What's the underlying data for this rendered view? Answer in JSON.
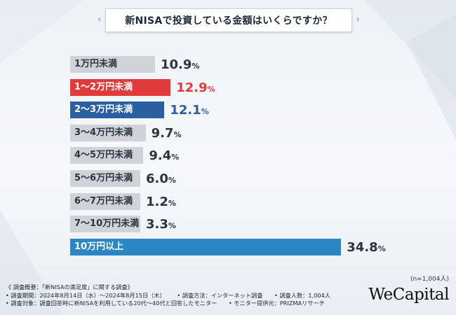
{
  "title": "新NISAで投資している金額はいくらですか？",
  "chart_data": {
    "type": "bar",
    "orientation": "horizontal",
    "categories": [
      "1万円未満",
      "1〜2万円未満",
      "2〜3万円未満",
      "3〜4万円未満",
      "4〜5万円未満",
      "5〜6万円未満",
      "6〜7万円未満",
      "7〜10万円未満",
      "10万円以上"
    ],
    "values": [
      10.9,
      12.9,
      12.1,
      9.7,
      9.4,
      6.0,
      1.2,
      3.3,
      34.8
    ],
    "value_labels": [
      "10.9",
      "12.9",
      "12.1",
      "9.7",
      "9.4",
      "6.0",
      "1.2",
      "3.3",
      "34.8"
    ],
    "unit": "%",
    "colors": [
      "#cfd3d8",
      "#e03a3a",
      "#2a5fa0",
      "#cfd3d8",
      "#cfd3d8",
      "#cfd3d8",
      "#cfd3d8",
      "#cfd3d8",
      "#2b86c4"
    ],
    "label_colors": [
      "#2c3540",
      "#ffffff",
      "#ffffff",
      "#2c3540",
      "#2c3540",
      "#2c3540",
      "#2c3540",
      "#2c3540",
      "#ffffff"
    ],
    "value_colors": [
      "#2c3540",
      "#e03a3a",
      "#2a5fa0",
      "#2c3540",
      "#2c3540",
      "#2c3540",
      "#2c3540",
      "#2c3540",
      "#2c3540"
    ],
    "sample_size": "(n=1,004人)"
  },
  "footer": {
    "line1": "《 調査概要：「新NISAの満足度」に関する調査》",
    "line2": [
      "• 調査期間：2024年8月14日（水）〜2024年8月15日（木）",
      "• 調査方法：インターネット調査",
      "• 調査人数：1,004人"
    ],
    "line3": [
      "• 調査対象：調査回答時に新NISAを利用している20代〜40代と回答したモニター",
      "• モニター提供元：PRIZMAリサーチ"
    ]
  },
  "logo": "WeCapital"
}
